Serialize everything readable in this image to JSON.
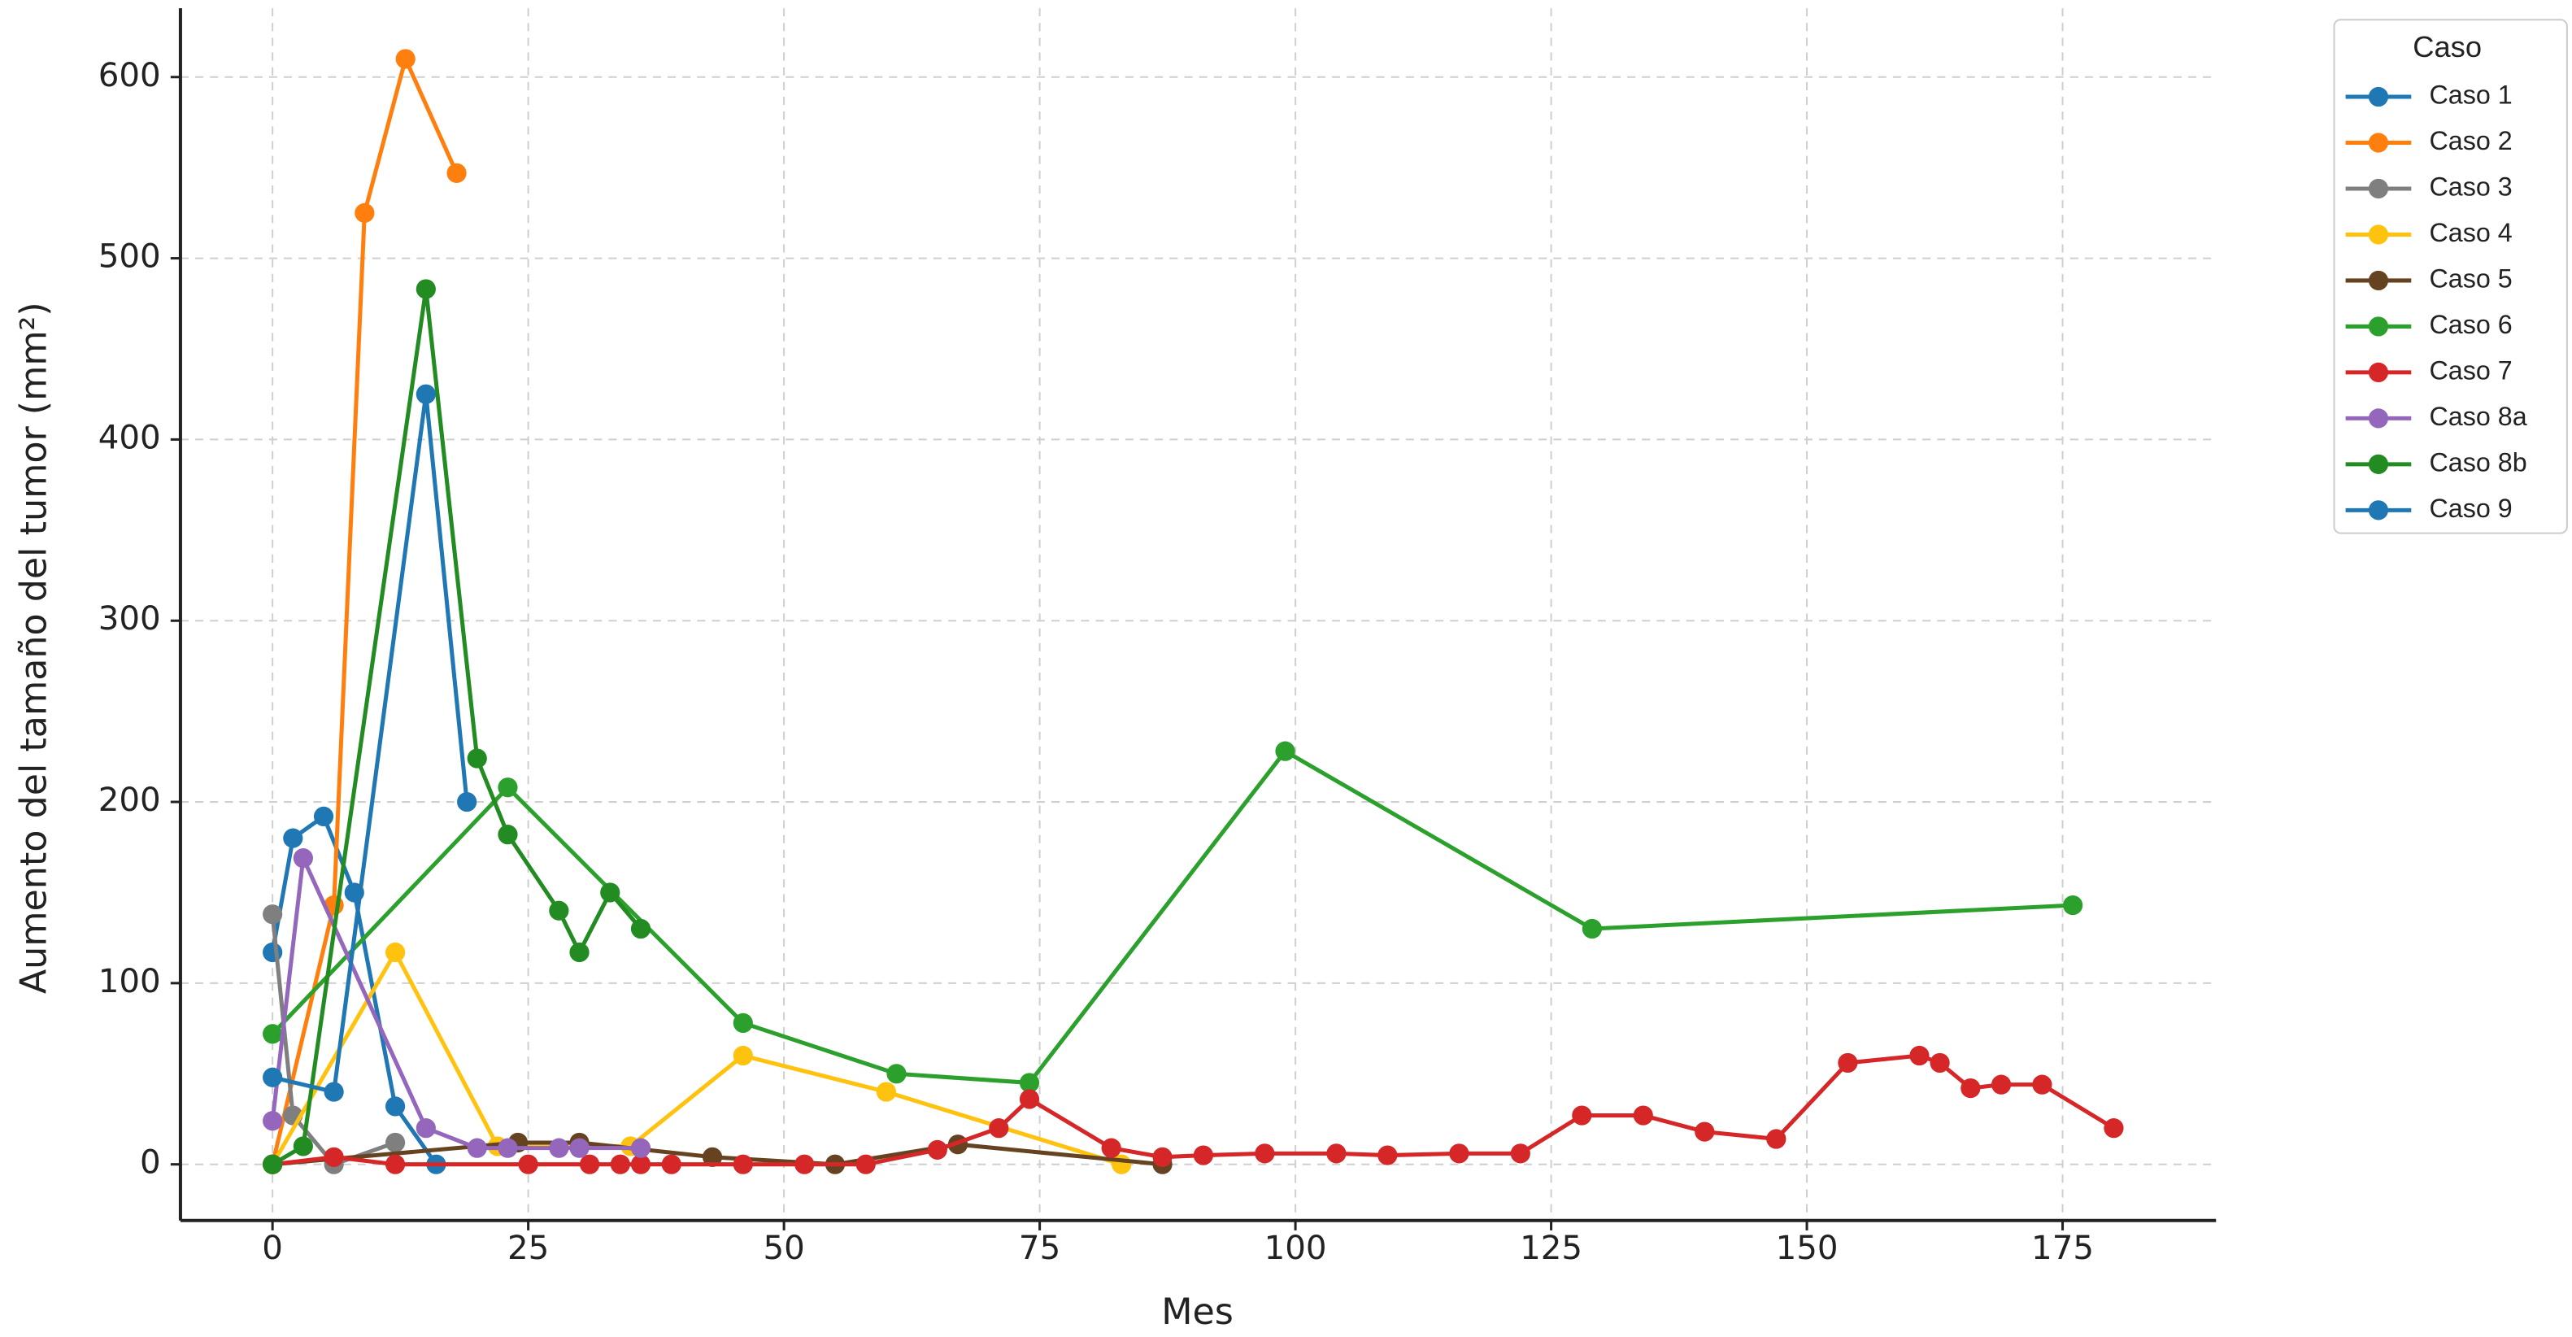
{
  "chart_data": {
    "type": "line",
    "x_label": "Mes",
    "y_label": "Aumento del tamaño del tumor (mm²)",
    "xlim": [
      -9,
      190
    ],
    "ylim": [
      -31,
      638
    ],
    "xticks": [
      0,
      25,
      50,
      75,
      100,
      125,
      150,
      175
    ],
    "yticks": [
      0,
      100,
      200,
      300,
      400,
      500,
      600
    ],
    "grid": true,
    "legend_title": "Caso",
    "legend_position": "outside-right",
    "series": [
      {
        "name": "Caso 1",
        "color": "#1f77b4",
        "x": [
          0,
          2,
          5,
          8,
          12,
          16
        ],
        "values": [
          117,
          180,
          192,
          150,
          32,
          0
        ]
      },
      {
        "name": "Caso 2",
        "color": "#ff7f0e",
        "x": [
          0,
          6,
          9,
          13,
          18
        ],
        "values": [
          0,
          143,
          525,
          610,
          547
        ]
      },
      {
        "name": "Caso 3",
        "color": "#7f7f7f",
        "x": [
          0,
          2,
          6,
          12
        ],
        "values": [
          138,
          27,
          0,
          12
        ]
      },
      {
        "name": "Caso 4",
        "color": "#ffc20e",
        "x": [
          0,
          12,
          22,
          35,
          46,
          60,
          83
        ],
        "values": [
          0,
          117,
          10,
          10,
          60,
          40,
          0
        ]
      },
      {
        "name": "Caso 5",
        "color": "#654321",
        "x": [
          0,
          24,
          30,
          43,
          55,
          67,
          87
        ],
        "values": [
          0,
          12,
          12,
          4,
          0,
          11,
          0
        ]
      },
      {
        "name": "Caso 6",
        "color": "#2ca02c",
        "x": [
          0,
          23,
          46,
          61,
          74,
          99,
          129,
          176
        ],
        "values": [
          72,
          208,
          78,
          50,
          45,
          228,
          130,
          143
        ]
      },
      {
        "name": "Caso 7",
        "color": "#d62728",
        "x": [
          0,
          6,
          12,
          25,
          31,
          34,
          36,
          39,
          46,
          52,
          58,
          65,
          71,
          74,
          82,
          87,
          91,
          97,
          104,
          109,
          116,
          122,
          128,
          134,
          140,
          147,
          154,
          161,
          163,
          166,
          169,
          173,
          180
        ],
        "values": [
          0,
          4,
          0,
          0,
          0,
          0,
          0,
          0,
          0,
          0,
          0,
          8,
          20,
          36,
          9,
          4,
          5,
          6,
          6,
          5,
          6,
          6,
          27,
          27,
          18,
          14,
          56,
          60,
          56,
          42,
          44,
          44,
          20
        ]
      },
      {
        "name": "Caso 8a",
        "color": "#9467bd",
        "x": [
          0,
          3,
          15,
          20,
          23,
          28,
          30,
          36
        ],
        "values": [
          24,
          169,
          20,
          9,
          9,
          9,
          9,
          9
        ]
      },
      {
        "name": "Caso 8b",
        "color": "#228b22",
        "x": [
          0,
          3,
          15,
          20,
          23,
          28,
          30,
          33,
          36
        ],
        "values": [
          0,
          10,
          483,
          224,
          182,
          140,
          117,
          150,
          130
        ]
      },
      {
        "name": "Caso 9",
        "color": "#1f77b4",
        "x": [
          0,
          6,
          15,
          19
        ],
        "values": [
          48,
          40,
          425,
          200
        ]
      }
    ]
  }
}
